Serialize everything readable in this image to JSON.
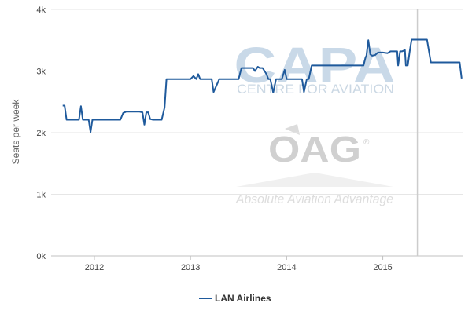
{
  "watermarks": {
    "capa_logo": "CAPA",
    "capa_subtitle": "CENTRE FOR AVIATION",
    "oag_logo": "OAG",
    "oag_registered": "®",
    "oag_tagline": "Absolute Aviation Advantage"
  },
  "chart_data": {
    "type": "line",
    "title": "",
    "xlabel": "",
    "ylabel": "Seats per week",
    "y_ticks": [
      0,
      1000,
      2000,
      3000,
      4000
    ],
    "y_tick_labels": [
      "0k",
      "1k",
      "2k",
      "3k",
      "4k"
    ],
    "ylim": [
      0,
      4000
    ],
    "x_ticks": [
      2012,
      2013,
      2014,
      2015
    ],
    "x_tick_labels": [
      "2012",
      "2013",
      "2014",
      "2015"
    ],
    "xlim": [
      2011.55,
      2015.83
    ],
    "grid": "horizontal",
    "legend_position": "bottom-center",
    "vertical_marker": 2015.36,
    "colors": {
      "series": "#1f5a9c",
      "grid": "#e6e6e6",
      "marker": "#cccccc"
    },
    "series": [
      {
        "name": "LAN Airlines",
        "x": [
          2011.67,
          2011.69,
          2011.71,
          2011.73,
          2011.76,
          2011.8,
          2011.84,
          2011.86,
          2011.88,
          2011.9,
          2011.94,
          2011.96,
          2011.98,
          2012.0,
          2012.1,
          2012.2,
          2012.27,
          2012.3,
          2012.33,
          2012.4,
          2012.47,
          2012.5,
          2012.52,
          2012.54,
          2012.56,
          2012.58,
          2012.61,
          2012.66,
          2012.7,
          2012.73,
          2012.75,
          2012.77,
          2012.85,
          2012.95,
          2013.0,
          2013.03,
          2013.06,
          2013.08,
          2013.1,
          2013.2,
          2013.22,
          2013.24,
          2013.3,
          2013.4,
          2013.48,
          2013.5,
          2013.53,
          2013.65,
          2013.67,
          2013.7,
          2013.72,
          2013.75,
          2013.77,
          2013.79,
          2013.81,
          2013.83,
          2013.86,
          2013.89,
          2013.92,
          2013.95,
          2013.98,
          2014.0,
          2014.05,
          2014.1,
          2014.15,
          2014.16,
          2014.18,
          2014.21,
          2014.23,
          2014.26,
          2014.3,
          2014.5,
          2014.7,
          2014.76,
          2014.78,
          2014.8,
          2014.82,
          2014.83,
          2014.85,
          2014.87,
          2014.89,
          2014.92,
          2014.95,
          2015.0,
          2015.05,
          2015.08,
          2015.12,
          2015.15,
          2015.16,
          2015.18,
          2015.2,
          2015.23,
          2015.24,
          2015.26,
          2015.28,
          2015.3,
          2015.45,
          2015.46,
          2015.5,
          2015.6,
          2015.75,
          2015.8,
          2015.82
        ],
        "y": [
          2440,
          2440,
          2210,
          2210,
          2210,
          2210,
          2210,
          2430,
          2210,
          2210,
          2210,
          2010,
          2210,
          2210,
          2210,
          2210,
          2210,
          2320,
          2340,
          2340,
          2340,
          2330,
          2130,
          2330,
          2330,
          2220,
          2210,
          2210,
          2210,
          2410,
          2870,
          2870,
          2870,
          2870,
          2870,
          2920,
          2870,
          2950,
          2870,
          2870,
          2870,
          2660,
          2870,
          2870,
          2870,
          2870,
          3050,
          3050,
          3000,
          3070,
          3050,
          3050,
          3000,
          2950,
          2870,
          2870,
          2650,
          2870,
          2870,
          2870,
          3020,
          2870,
          2870,
          2870,
          2870,
          2870,
          2660,
          2870,
          2870,
          3090,
          3090,
          3090,
          3090,
          3090,
          3090,
          3090,
          3220,
          3250,
          3500,
          3270,
          3250,
          3260,
          3300,
          3300,
          3290,
          3320,
          3320,
          3320,
          3090,
          3320,
          3320,
          3340,
          3090,
          3090,
          3320,
          3510,
          3510,
          3510,
          3140,
          3140,
          3140,
          3140,
          2880
        ]
      }
    ]
  }
}
